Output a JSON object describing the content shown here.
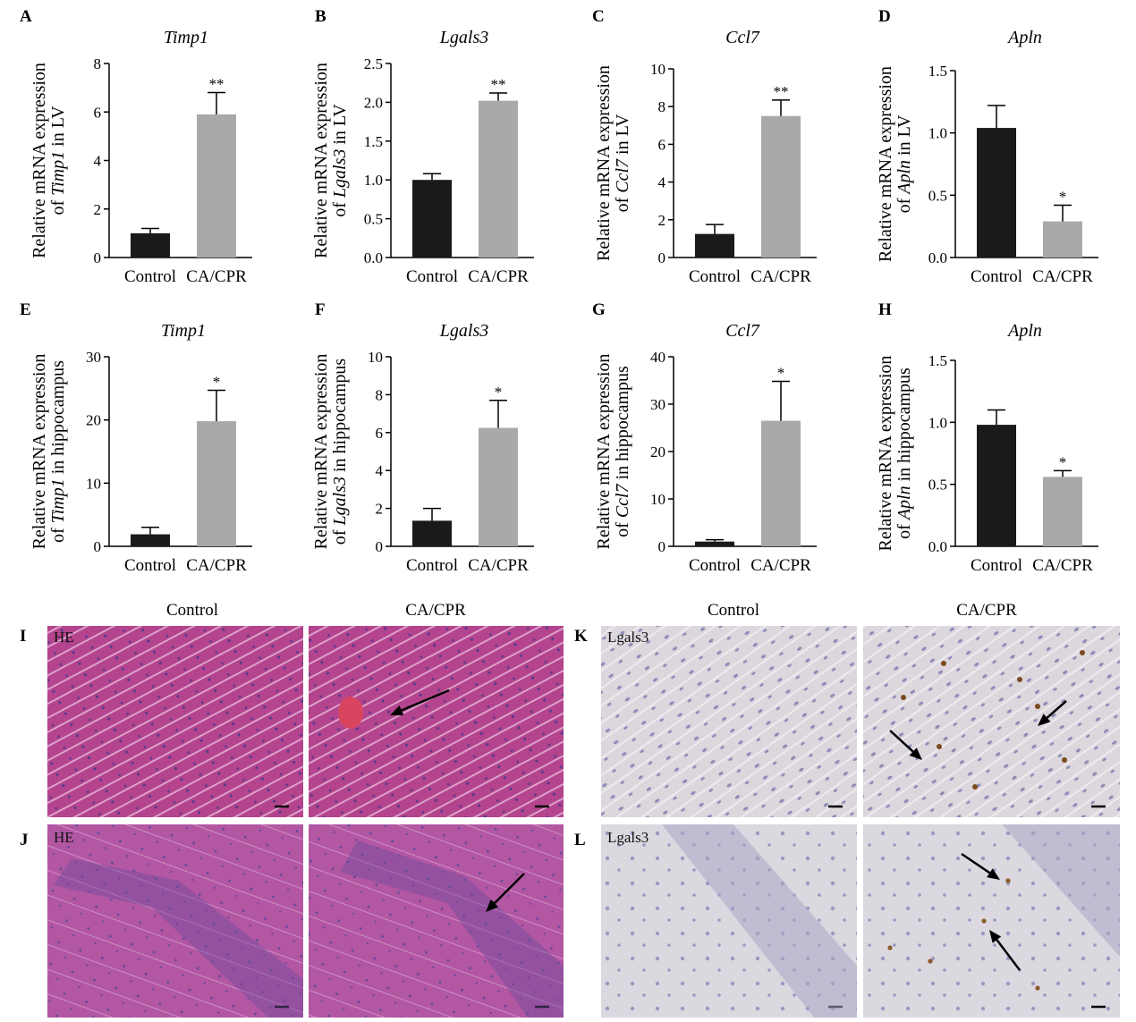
{
  "colors": {
    "control_bar": "#1a1a1a",
    "cacpr_bar": "#a9a9a9",
    "he_stain": "#b9468f",
    "ihc_stain": "#d9d4dc",
    "arrow": "#000000"
  },
  "chart_data": [
    {
      "panel": "A",
      "type": "bar",
      "title": "Timp1",
      "ylabel_prefix": "Relative mRNA expression",
      "ylabel_gene": "Timp1",
      "ylabel_pre": "of ",
      "ylabel_suffix": " in LV",
      "categories": [
        "Control",
        "CA/CPR"
      ],
      "values": [
        1.0,
        5.9
      ],
      "errors": [
        0.2,
        0.9
      ],
      "sig": [
        "",
        "**"
      ],
      "ylim": [
        0,
        8
      ],
      "ticks": [
        "0",
        "2",
        "4",
        "6",
        "8"
      ]
    },
    {
      "panel": "B",
      "type": "bar",
      "title": "Lgals3",
      "ylabel_prefix": "Relative mRNA expression",
      "ylabel_gene": "Lgals3",
      "ylabel_pre": "of ",
      "ylabel_suffix": " in LV",
      "categories": [
        "Control",
        "CA/CPR"
      ],
      "values": [
        1.0,
        2.02
      ],
      "errors": [
        0.08,
        0.1
      ],
      "sig": [
        "",
        "**"
      ],
      "ylim": [
        0,
        2.5
      ],
      "ticks": [
        "0.0",
        "0.5",
        "1.0",
        "1.5",
        "2.0",
        "2.5"
      ]
    },
    {
      "panel": "C",
      "type": "bar",
      "title": "Ccl7",
      "ylabel_prefix": "Relative mRNA expression",
      "ylabel_gene": "Ccl7",
      "ylabel_pre": "of ",
      "ylabel_suffix": " in LV",
      "categories": [
        "Control",
        "CA/CPR"
      ],
      "values": [
        1.25,
        7.5
      ],
      "errors": [
        0.5,
        0.85
      ],
      "sig": [
        "",
        "**"
      ],
      "ylim": [
        0,
        10
      ],
      "ticks": [
        "0",
        "2",
        "4",
        "6",
        "8",
        "10"
      ]
    },
    {
      "panel": "D",
      "type": "bar",
      "title": "Apln",
      "ylabel_prefix": "Relative mRNA expression",
      "ylabel_gene": "Apln",
      "ylabel_pre": "of ",
      "ylabel_suffix": " in LV",
      "categories": [
        "Control",
        "CA/CPR"
      ],
      "values": [
        1.04,
        0.29
      ],
      "errors": [
        0.18,
        0.13
      ],
      "sig": [
        "",
        "*"
      ],
      "ylim": [
        0,
        1.5
      ],
      "ticks": [
        "0.0",
        "0.5",
        "1.0",
        "1.5"
      ]
    },
    {
      "panel": "E",
      "type": "bar",
      "title": "Timp1",
      "ylabel_prefix": "Relative mRNA expression",
      "ylabel_gene": "Timp1",
      "ylabel_pre": "of ",
      "ylabel_suffix": " in hippocampus",
      "categories": [
        "Control",
        "CA/CPR"
      ],
      "values": [
        1.9,
        19.8
      ],
      "errors": [
        1.1,
        4.9
      ],
      "sig": [
        "",
        "*"
      ],
      "ylim": [
        0,
        30
      ],
      "ticks": [
        "0",
        "10",
        "20",
        "30"
      ]
    },
    {
      "panel": "F",
      "type": "bar",
      "title": "Lgals3",
      "ylabel_prefix": "Relative mRNA expression",
      "ylabel_gene": "Lgals3",
      "ylabel_pre": "of ",
      "ylabel_suffix": " in hippocampus",
      "categories": [
        "Control",
        "CA/CPR"
      ],
      "values": [
        1.35,
        6.25
      ],
      "errors": [
        0.65,
        1.45
      ],
      "sig": [
        "",
        "*"
      ],
      "ylim": [
        0,
        10
      ],
      "ticks": [
        "0",
        "2",
        "4",
        "6",
        "8",
        "10"
      ]
    },
    {
      "panel": "G",
      "type": "bar",
      "title": "Ccl7",
      "ylabel_prefix": "Relative mRNA expression",
      "ylabel_gene": "Ccl7",
      "ylabel_pre": "of ",
      "ylabel_suffix": " in hippocampus",
      "categories": [
        "Control",
        "CA/CPR"
      ],
      "values": [
        1.0,
        26.5
      ],
      "errors": [
        0.4,
        8.3
      ],
      "sig": [
        "",
        "*"
      ],
      "ylim": [
        0,
        40
      ],
      "ticks": [
        "0",
        "10",
        "20",
        "30",
        "40"
      ]
    },
    {
      "panel": "H",
      "type": "bar",
      "title": "Apln",
      "ylabel_prefix": "Relative mRNA expression",
      "ylabel_gene": "Apln",
      "ylabel_pre": "of ",
      "ylabel_suffix": " in hippocampus",
      "categories": [
        "Control",
        "CA/CPR"
      ],
      "values": [
        0.98,
        0.56
      ],
      "errors": [
        0.12,
        0.05
      ],
      "sig": [
        "",
        "*"
      ],
      "ylim": [
        0,
        1.5
      ],
      "ticks": [
        "0.0",
        "0.5",
        "1.0",
        "1.5"
      ]
    }
  ],
  "micrographs": {
    "columns": [
      "Control",
      "CA/CPR",
      "Control",
      "CA/CPR"
    ],
    "rows": [
      {
        "panel": "I",
        "stain_label": "HE"
      },
      {
        "panel": "J",
        "stain_label": "HE"
      },
      {
        "panel": "K",
        "stain_label": "Lgals3"
      },
      {
        "panel": "L",
        "stain_label": "Lgals3"
      }
    ]
  }
}
